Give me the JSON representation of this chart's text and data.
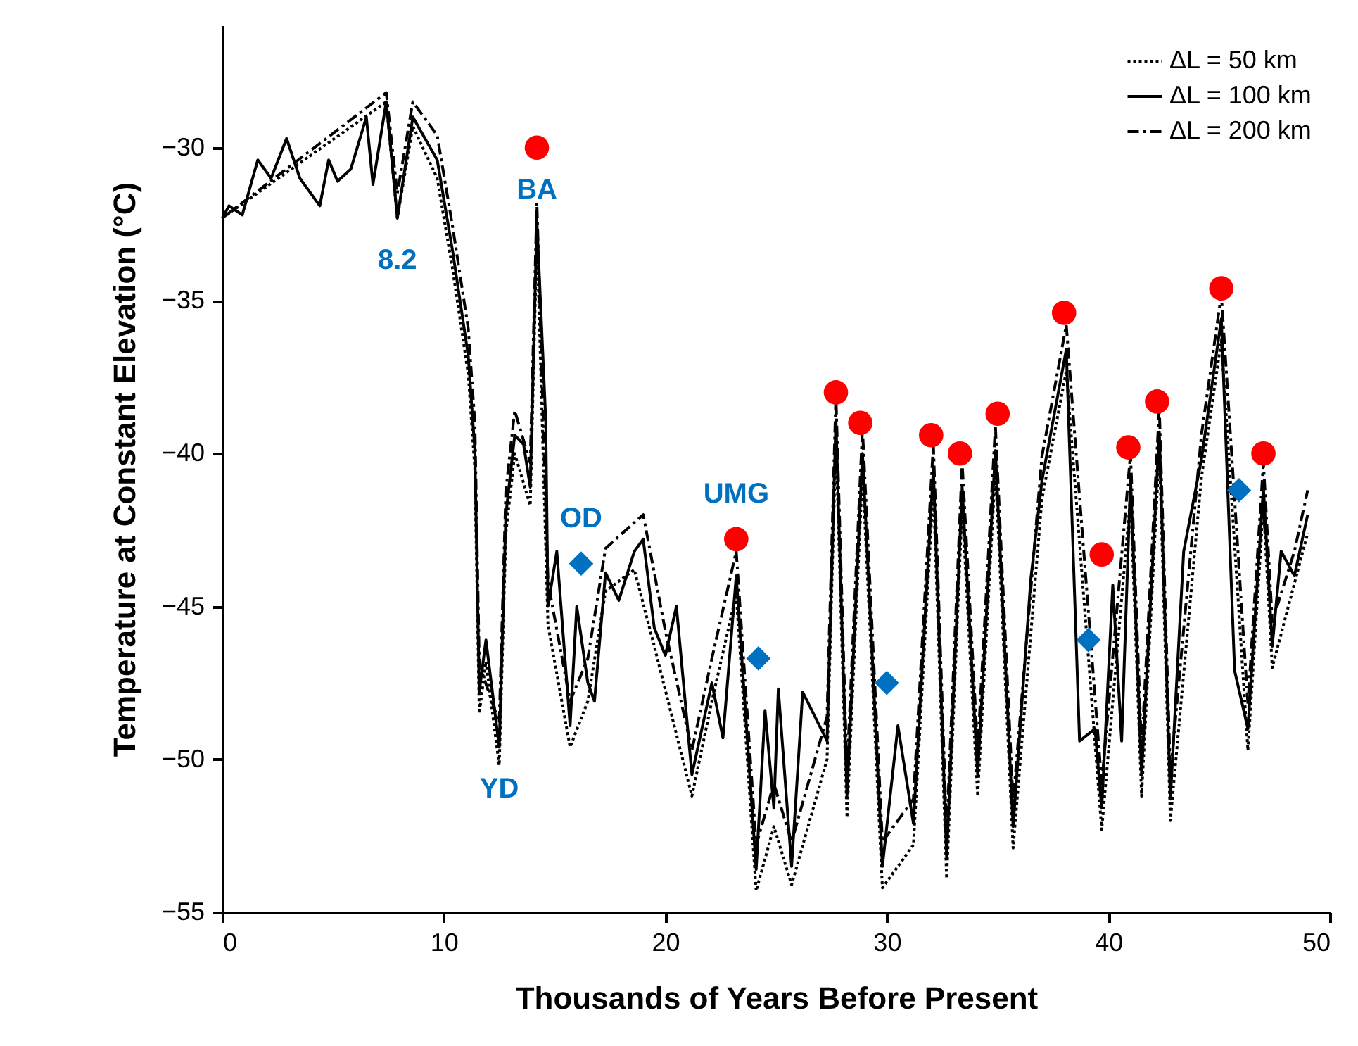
{
  "chart_data": {
    "type": "line",
    "xlabel": "Thousands of Years Before Present",
    "ylabel": "Temperature at Constant Elevation (°C)",
    "xlim": [
      0,
      50
    ],
    "xticks": [
      0,
      10,
      20,
      30,
      40,
      50
    ],
    "ylim": [
      -55,
      -26
    ],
    "yticks": [
      -55,
      -50,
      -45,
      -40,
      -35,
      -30
    ],
    "grid": false,
    "legend": "top right",
    "annotations": [
      {
        "text": "BA",
        "x": 14.2,
        "y": -32.4
      },
      {
        "text": "8.2",
        "x": 7.9,
        "y": -32.3
      },
      {
        "text": "YD",
        "x": 12.5,
        "y": -49.6
      },
      {
        "text": "OD",
        "x": 16.2,
        "y": -43.6
      },
      {
        "text": "UMG",
        "x": 23.2,
        "y": -42.8
      }
    ],
    "series": [
      {
        "name": "ΔL = 50 km",
        "color": "#000000",
        "line_style": "dotted",
        "x": [
          0,
          7.4,
          7.9,
          8.6,
          9.7,
          10.4,
          11.1,
          11.4,
          11.6,
          11.9,
          12.5,
          12.8,
          13.2,
          13.9,
          14.2,
          14.7,
          15.7,
          16.5,
          17.3,
          18.6,
          19.5,
          21.2,
          22.1,
          23.2,
          24.1,
          24.9,
          25.7,
          27.3,
          27.7,
          28.2,
          28.9,
          29.8,
          31.2,
          32.1,
          32.7,
          33.4,
          34.1,
          34.9,
          35.7,
          37.0,
          38.1,
          39.7,
          41.0,
          41.5,
          42.3,
          42.8,
          44.2,
          45.1,
          46.3,
          47.0,
          47.4,
          49.0
        ],
        "values": [
          -32.3,
          -28.5,
          -32.3,
          -29.3,
          -31.0,
          -34.0,
          -37.4,
          -40.5,
          -48.5,
          -46.8,
          -50.2,
          -42.6,
          -40.0,
          -41.7,
          -32.8,
          -45.6,
          -49.6,
          -48.1,
          -44.5,
          -43.8,
          -46.3,
          -51.2,
          -48.1,
          -44.6,
          -54.3,
          -52.2,
          -54.1,
          -50.0,
          -39.5,
          -51.9,
          -40.6,
          -54.2,
          -52.8,
          -41.1,
          -53.9,
          -41.7,
          -51.2,
          -40.5,
          -52.9,
          -41.5,
          -37.3,
          -52.3,
          -41.4,
          -51.2,
          -39.9,
          -52.0,
          -40.8,
          -36.3,
          -49.7,
          -41.7,
          -47.0,
          -42.6
        ]
      },
      {
        "name": "ΔL = 100 km",
        "color": "#000000",
        "line_style": "solid",
        "x": [
          0,
          0.3,
          0.9,
          1.6,
          2.2,
          2.9,
          3.5,
          4.4,
          4.8,
          5.2,
          5.8,
          6.5,
          6.8,
          7.4,
          7.9,
          8.6,
          9.7,
          10.4,
          11.1,
          11.4,
          11.6,
          11.9,
          12.5,
          12.8,
          13.2,
          13.6,
          13.9,
          14.2,
          14.6,
          14.7,
          15.1,
          15.7,
          16.0,
          16.5,
          16.8,
          17.3,
          17.9,
          18.6,
          19.0,
          19.5,
          20.0,
          20.5,
          21.2,
          22.1,
          22.6,
          23.2,
          24.1,
          24.5,
          24.9,
          25.1,
          25.7,
          26.2,
          27.3,
          27.7,
          28.2,
          28.9,
          29.8,
          30.5,
          31.2,
          32.1,
          32.7,
          33.4,
          34.1,
          34.9,
          35.7,
          36.5,
          37.0,
          38.1,
          38.7,
          39.4,
          39.7,
          40.2,
          40.6,
          41.0,
          41.5,
          42.3,
          42.8,
          43.4,
          44.2,
          45.1,
          45.7,
          46.3,
          47.0,
          47.4,
          47.8,
          48.4,
          49.0
        ],
        "values": [
          -32.3,
          -31.9,
          -32.2,
          -30.4,
          -31.0,
          -29.7,
          -31.0,
          -31.9,
          -30.4,
          -31.1,
          -30.7,
          -29.0,
          -31.2,
          -28.5,
          -32.3,
          -29.0,
          -30.4,
          -33.4,
          -36.8,
          -39.9,
          -47.8,
          -46.1,
          -49.6,
          -42.0,
          -39.4,
          -39.7,
          -41.1,
          -32.4,
          -38.9,
          -45.0,
          -43.2,
          -48.9,
          -45.0,
          -47.5,
          -48.1,
          -43.9,
          -44.8,
          -43.2,
          -42.8,
          -45.7,
          -46.6,
          -45.0,
          -50.5,
          -47.5,
          -49.3,
          -44.0,
          -53.6,
          -48.4,
          -51.6,
          -47.7,
          -53.5,
          -47.8,
          -49.4,
          -38.9,
          -51.2,
          -40.0,
          -53.5,
          -48.9,
          -52.1,
          -40.5,
          -53.2,
          -41.1,
          -50.5,
          -39.9,
          -52.2,
          -44.1,
          -40.9,
          -36.6,
          -49.4,
          -49.0,
          -51.6,
          -44.3,
          -49.4,
          -40.8,
          -50.5,
          -39.3,
          -51.3,
          -43.2,
          -40.2,
          -35.6,
          -47.1,
          -49.0,
          -41.1,
          -46.3,
          -43.2,
          -44.0,
          -42.0
        ]
      },
      {
        "name": "ΔL = 200 km",
        "color": "#000000",
        "line_style": "dashed",
        "x": [
          0,
          7.4,
          7.9,
          8.6,
          9.7,
          10.4,
          11.1,
          11.4,
          11.6,
          12.5,
          12.8,
          13.2,
          13.9,
          14.2,
          14.7,
          15.7,
          16.5,
          17.3,
          19.0,
          20.0,
          21.2,
          22.1,
          23.2,
          24.1,
          24.9,
          25.7,
          27.3,
          27.7,
          28.2,
          28.9,
          29.8,
          31.2,
          32.1,
          32.7,
          33.4,
          34.1,
          34.9,
          35.7,
          37.0,
          38.1,
          39.7,
          41.0,
          41.5,
          42.3,
          42.8,
          44.2,
          45.1,
          46.3,
          47.0,
          47.4,
          48.4,
          49.0
        ],
        "values": [
          -32.3,
          -28.2,
          -31.5,
          -28.5,
          -29.6,
          -32.6,
          -35.9,
          -39.0,
          -46.9,
          -48.8,
          -41.2,
          -38.6,
          -40.3,
          -31.8,
          -44.2,
          -48.1,
          -46.7,
          -43.1,
          -42.0,
          -45.8,
          -49.7,
          -46.7,
          -43.2,
          -52.8,
          -50.8,
          -52.7,
          -48.6,
          -38.1,
          -50.4,
          -39.2,
          -52.7,
          -51.3,
          -39.7,
          -52.4,
          -40.3,
          -49.7,
          -39.1,
          -51.4,
          -40.1,
          -35.8,
          -50.8,
          -40.0,
          -49.7,
          -38.5,
          -50.5,
          -39.4,
          -34.8,
          -48.2,
          -40.3,
          -45.5,
          -43.2,
          -41.2
        ]
      },
      {
        "type": "scatter",
        "marker": "circle",
        "color": "#ff0000",
        "x": [
          14.2,
          23.2,
          27.7,
          28.8,
          32.0,
          33.3,
          35.0,
          38.0,
          39.7,
          40.9,
          42.2,
          45.1,
          47.0
        ],
        "values": [
          -30.0,
          -42.8,
          -38.0,
          -39.0,
          -39.4,
          -40.0,
          -38.7,
          -35.4,
          -43.3,
          -39.8,
          -38.3,
          -34.6,
          -40.0
        ]
      },
      {
        "type": "scatter",
        "marker": "diamond",
        "color": "#0070c0",
        "x": [
          16.2,
          24.2,
          30.0,
          39.1,
          45.9
        ],
        "values": [
          -43.6,
          -46.7,
          -47.5,
          -46.1,
          -41.2
        ]
      }
    ]
  }
}
